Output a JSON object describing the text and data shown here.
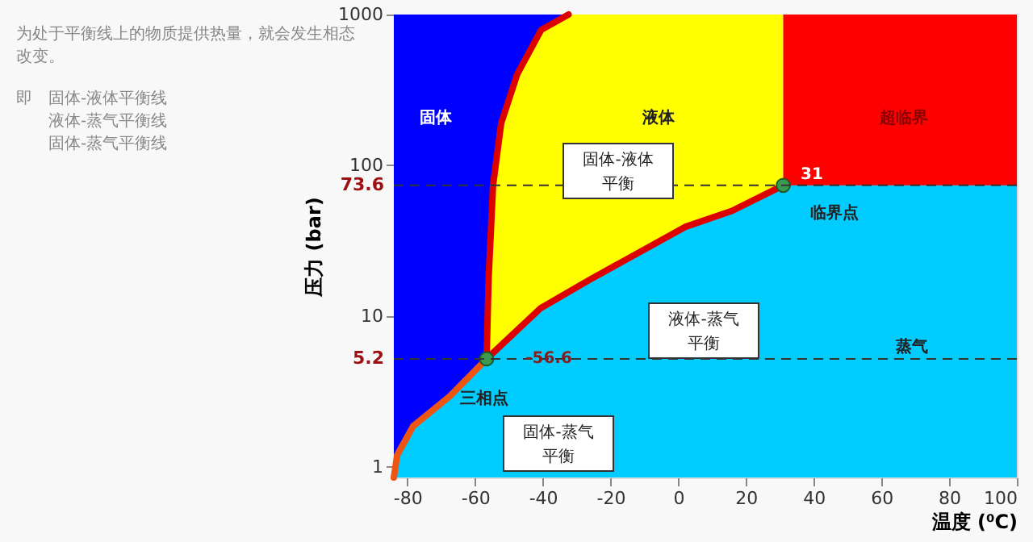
{
  "chart_data": {
    "type": "area",
    "xlabel": "温度 (⁰C)",
    "ylabel": "压力 (bar)",
    "xlim": [
      -84,
      100
    ],
    "xticks": [
      -80,
      -60,
      -40,
      -20,
      0,
      20,
      40,
      60,
      80,
      100
    ],
    "ylim": [
      0.85,
      1000
    ],
    "yticks": [
      1,
      10,
      100,
      1000
    ],
    "log": true,
    "grid": false,
    "series": [
      {
        "color": "#0000ff",
        "x": [
          -84,
          -32.4
        ],
        "values": [
          1000,
          1000
        ]
      },
      {
        "color": "#ffff00",
        "x": [
          -56.6,
          -56,
          -54.7,
          -52.3,
          -47.6,
          -40.5,
          -32.4,
          31
        ],
        "values": [
          5.2,
          18,
          73.6,
          190,
          400,
          790,
          1000,
          1000
        ]
      },
      {
        "color": "#ff0000",
        "x": [
          31,
          100
        ],
        "values": [
          1000,
          1000
        ]
      },
      {
        "color": "#00ccff",
        "x": [
          -84,
          -83,
          -78.3,
          -67.4,
          -56.6,
          -40.6,
          -26.4,
          2,
          16,
          31,
          100
        ],
        "values": [
          0.85,
          1.2,
          1.86,
          2.95,
          5.2,
          11.3,
          17.3,
          39,
          50,
          73.6,
          73.6
        ]
      },
      {
        "type": "line",
        "color": "#dd0000",
        "x": [
          -32.4,
          -40.5,
          -47.6,
          -52.3,
          -54.7,
          -56,
          -56.6,
          -40.6,
          -26.4,
          2,
          16,
          31
        ],
        "values": [
          1000,
          790,
          400,
          190,
          73.6,
          18,
          5.2,
          11.3,
          17.3,
          39,
          50,
          73.6
        ]
      },
      {
        "type": "line",
        "color": "#ee5511",
        "x": [
          -84,
          -83,
          -78.3,
          -67.4,
          -56.6
        ],
        "values": [
          0.85,
          1.2,
          1.86,
          2.95,
          5.2
        ]
      },
      {
        "type": "scatter",
        "color": "#3c9a50",
        "x": [
          -56.6,
          31
        ],
        "values": [
          5.2,
          73.6
        ]
      }
    ],
    "ref_lines": [
      {
        "axis": "y",
        "value": 73.6,
        "label": "73.6",
        "color": "#333333",
        "line_style": "dashed"
      },
      {
        "axis": "y",
        "value": 5.2,
        "label": "5.2",
        "color": "#333333",
        "line_style": "dashed"
      }
    ],
    "annotations": [
      "为处于平衡线上的物质提供热量，就会发生相态改变。",
      "即",
      "固体-液体平衡线",
      "液体-蒸气平衡线",
      "固体-蒸气平衡线",
      "固体",
      "液体",
      "超临界",
      "蒸气",
      "-56.6",
      "三相点",
      "31",
      "临界点",
      "固体-液体平衡",
      "液体-蒸气平衡",
      "固体-蒸气平衡"
    ]
  }
}
